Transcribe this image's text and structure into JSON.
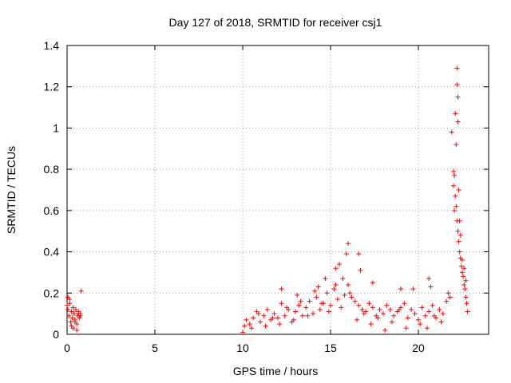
{
  "chart_data": {
    "type": "scatter",
    "title": "Day 127 of 2018, SRMTID for receiver csj1",
    "xlabel": "GPS time / hours",
    "ylabel": "SRMTID / TECUs",
    "xlim": [
      0,
      24
    ],
    "ylim": [
      0,
      1.4
    ],
    "x_ticks": [
      0,
      5,
      10,
      15,
      20
    ],
    "x_tick_labels": [
      "0",
      "5",
      "10",
      "15",
      "20"
    ],
    "y_ticks": [
      0,
      0.2,
      0.4,
      0.6,
      0.8,
      1.0,
      1.2,
      1.4
    ],
    "y_tick_labels": [
      "0",
      "0.2",
      "0.4",
      "0.6",
      "0.8",
      "1",
      "1.2",
      "1.4"
    ],
    "grid": true,
    "marker": "+",
    "color": "#ff0000",
    "series": [
      {
        "name": "csj1",
        "x": [
          0.0,
          0.05,
          0.1,
          0.15,
          0.2,
          0.25,
          0.3,
          0.35,
          0.4,
          0.45,
          0.5,
          0.55,
          0.6,
          0.65,
          0.7,
          0.75,
          0.8,
          0.05,
          0.15,
          0.25,
          0.35,
          0.45,
          0.55,
          0.65,
          0.75,
          10.0,
          10.2,
          10.4,
          10.6,
          10.8,
          11.0,
          11.2,
          11.4,
          11.6,
          11.8,
          12.0,
          12.2,
          12.4,
          12.6,
          12.8,
          13.0,
          13.2,
          13.4,
          13.6,
          13.8,
          14.0,
          14.2,
          14.4,
          14.6,
          14.8,
          15.0,
          15.2,
          15.4,
          15.6,
          15.8,
          16.0,
          16.2,
          16.4,
          16.6,
          16.8,
          17.0,
          17.2,
          17.4,
          17.6,
          17.8,
          18.0,
          18.2,
          18.4,
          18.6,
          18.8,
          19.0,
          19.2,
          19.4,
          19.6,
          19.8,
          20.0,
          20.2,
          20.4,
          20.6,
          20.8,
          21.0,
          21.2,
          21.4,
          21.6,
          21.8,
          10.1,
          10.5,
          10.9,
          11.3,
          11.7,
          12.1,
          12.5,
          12.9,
          13.3,
          13.7,
          14.1,
          14.5,
          14.9,
          15.3,
          15.7,
          16.1,
          16.5,
          16.9,
          17.3,
          17.7,
          18.1,
          18.5,
          18.9,
          19.3,
          19.7,
          20.1,
          20.5,
          20.9,
          21.3,
          21.7,
          12.2,
          13.1,
          14.3,
          14.7,
          15.3,
          15.5,
          15.9,
          16.0,
          16.6,
          16.7,
          17.4,
          19.0,
          20.6,
          20.7,
          21.9,
          22.0,
          22.05,
          22.1,
          22.15,
          22.2,
          22.25,
          22.3,
          22.35,
          22.4,
          22.45,
          22.5,
          22.55,
          22.6,
          22.65,
          22.7,
          22.75,
          22.8,
          22.0,
          22.05,
          22.1,
          22.15,
          22.2,
          22.2,
          22.25,
          22.25,
          22.3,
          22.35,
          22.4,
          22.5,
          22.6,
          22.7
        ],
        "y": [
          0.14,
          0.18,
          0.09,
          0.15,
          0.06,
          0.11,
          0.08,
          0.03,
          0.1,
          0.07,
          0.12,
          0.05,
          0.09,
          0.11,
          0.08,
          0.1,
          0.21,
          0.12,
          0.17,
          0.04,
          0.13,
          0.06,
          0.02,
          0.1,
          0.09,
          0.01,
          0.07,
          0.05,
          0.08,
          0.11,
          0.06,
          0.09,
          0.12,
          0.07,
          0.1,
          0.08,
          0.15,
          0.09,
          0.12,
          0.06,
          0.11,
          0.14,
          0.09,
          0.13,
          0.16,
          0.1,
          0.18,
          0.12,
          0.15,
          0.2,
          0.14,
          0.22,
          0.17,
          0.13,
          0.19,
          0.24,
          0.18,
          0.16,
          0.14,
          0.12,
          0.11,
          0.15,
          0.13,
          0.09,
          0.12,
          0.1,
          0.14,
          0.12,
          0.09,
          0.11,
          0.13,
          0.15,
          0.08,
          0.12,
          0.1,
          0.07,
          0.13,
          0.09,
          0.11,
          0.14,
          0.08,
          0.12,
          0.1,
          0.16,
          0.18,
          0.04,
          0.03,
          0.1,
          0.04,
          0.08,
          0.05,
          0.13,
          0.07,
          0.16,
          0.09,
          0.21,
          0.15,
          0.11,
          0.24,
          0.27,
          0.2,
          0.07,
          0.1,
          0.05,
          0.08,
          0.02,
          0.06,
          0.12,
          0.03,
          0.22,
          0.05,
          0.03,
          0.09,
          0.06,
          0.2,
          0.22,
          0.19,
          0.23,
          0.27,
          0.32,
          0.34,
          0.39,
          0.44,
          0.39,
          0.31,
          0.25,
          0.22,
          0.27,
          0.23,
          0.98,
          0.79,
          0.77,
          0.67,
          0.62,
          0.55,
          0.5,
          0.45,
          0.4,
          0.37,
          0.33,
          0.3,
          0.28,
          0.24,
          0.22,
          0.18,
          0.15,
          0.11,
          0.72,
          0.6,
          1.07,
          0.92,
          1.29,
          1.21,
          1.15,
          1.03,
          0.7,
          0.55,
          0.48,
          0.36,
          0.32,
          0.26
        ]
      }
    ]
  }
}
